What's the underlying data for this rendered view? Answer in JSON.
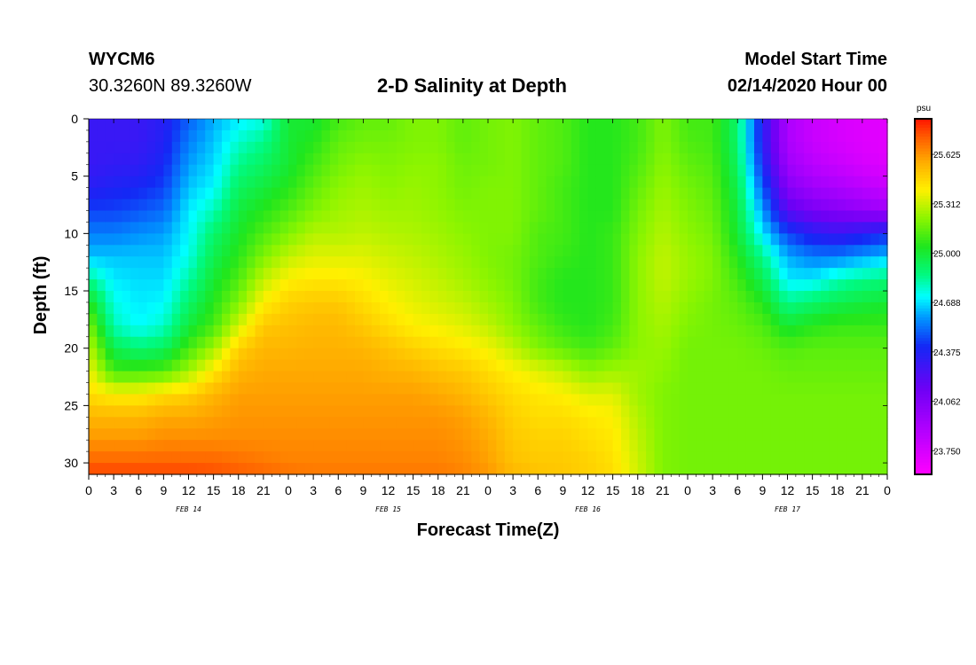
{
  "header": {
    "station": "WYCM6",
    "coords": "30.3260N 89.3260W",
    "title": "2-D Salinity at Depth",
    "model_start_label": "Model Start Time",
    "model_start_value": "02/14/2020 Hour 00"
  },
  "chart_data": {
    "type": "heatmap",
    "title": "2-D Salinity at Depth",
    "xlabel": "Forecast Time(Z)",
    "ylabel": "Depth (ft)",
    "x_range_hours": [
      0,
      96
    ],
    "y_range_ft": [
      0,
      31
    ],
    "y_inverted": true,
    "x_tick_labels": [
      "0",
      "3",
      "6",
      "9",
      "12",
      "15",
      "18",
      "21",
      "0",
      "3",
      "6",
      "9",
      "12",
      "15",
      "18",
      "21",
      "0",
      "3",
      "6",
      "9",
      "12",
      "15",
      "18",
      "21",
      "0",
      "3",
      "6",
      "9",
      "12",
      "15",
      "18",
      "21",
      "0"
    ],
    "x_date_labels": [
      {
        "label": "FEB 14",
        "hour": 12
      },
      {
        "label": "FEB 15",
        "hour": 36
      },
      {
        "label": "FEB 16",
        "hour": 60
      },
      {
        "label": "FEB 17",
        "hour": 84
      }
    ],
    "y_ticks": [
      0,
      5,
      10,
      15,
      20,
      25,
      30
    ],
    "colorbar": {
      "unit": "psu",
      "min": 23.6,
      "max": 25.85,
      "tick_values": [
        25.625,
        25.312,
        25.0,
        24.688,
        24.375,
        24.062,
        23.75
      ],
      "tick_labels": [
        "25.625",
        "25.312",
        "25.000",
        "24.688",
        "24.375",
        "24.062",
        "23.750"
      ]
    },
    "salinity_profiles_psu": {
      "hours": [
        0,
        3,
        6,
        9,
        12,
        15,
        18,
        21,
        24,
        27,
        30,
        33,
        36,
        39,
        42,
        45,
        48,
        51,
        54,
        57,
        60,
        63,
        66,
        69,
        72,
        75,
        78,
        81,
        84,
        87,
        90,
        93,
        96
      ],
      "depths_ft": [
        0,
        2,
        4,
        6,
        8,
        10,
        12,
        14,
        16,
        18,
        20,
        22,
        24,
        26,
        28,
        30,
        31
      ],
      "values": [
        [
          24.3,
          24.3,
          24.3,
          24.35,
          24.45,
          24.55,
          24.65,
          24.85,
          25.05,
          25.2,
          25.3,
          25.38,
          25.45,
          25.55,
          25.62,
          25.72,
          25.78
        ],
        [
          24.3,
          24.3,
          24.32,
          24.38,
          24.45,
          24.55,
          24.65,
          24.7,
          24.75,
          24.8,
          24.95,
          25.1,
          25.4,
          25.55,
          25.62,
          25.72,
          25.78
        ],
        [
          24.3,
          24.3,
          24.33,
          24.4,
          24.48,
          24.58,
          24.65,
          24.68,
          24.7,
          24.72,
          24.88,
          25.1,
          25.4,
          25.55,
          25.62,
          25.72,
          25.78
        ],
        [
          24.35,
          24.37,
          24.4,
          24.45,
          24.52,
          24.6,
          24.65,
          24.68,
          24.72,
          24.78,
          24.92,
          25.12,
          25.45,
          25.58,
          25.64,
          25.72,
          25.78
        ],
        [
          24.5,
          24.55,
          24.6,
          24.65,
          24.7,
          24.72,
          24.75,
          24.82,
          24.9,
          24.98,
          25.1,
          25.25,
          25.48,
          25.58,
          25.64,
          25.72,
          25.78
        ],
        [
          24.62,
          24.65,
          24.68,
          24.72,
          24.8,
          24.9,
          24.95,
          25.0,
          25.05,
          25.1,
          25.25,
          25.42,
          25.55,
          25.6,
          25.64,
          25.72,
          25.76
        ],
        [
          24.7,
          24.78,
          24.85,
          24.92,
          24.98,
          25.02,
          25.06,
          25.12,
          25.2,
          25.32,
          25.48,
          25.55,
          25.6,
          25.62,
          25.64,
          25.7,
          25.74
        ],
        [
          24.75,
          24.85,
          24.92,
          24.98,
          25.05,
          25.12,
          25.2,
          25.3,
          25.4,
          25.5,
          25.55,
          25.58,
          25.6,
          25.62,
          25.64,
          25.68,
          25.72
        ],
        [
          25.0,
          25.0,
          25.0,
          25.05,
          25.12,
          25.2,
          25.3,
          25.4,
          25.48,
          25.52,
          25.55,
          25.58,
          25.6,
          25.62,
          25.64,
          25.66,
          25.7
        ],
        [
          25.0,
          25.05,
          25.1,
          25.15,
          25.2,
          25.28,
          25.35,
          25.42,
          25.5,
          25.54,
          25.56,
          25.58,
          25.6,
          25.62,
          25.64,
          25.66,
          25.68
        ],
        [
          25.1,
          25.15,
          25.18,
          25.22,
          25.25,
          25.28,
          25.35,
          25.42,
          25.5,
          25.54,
          25.56,
          25.58,
          25.6,
          25.62,
          25.64,
          25.66,
          25.68
        ],
        [
          25.15,
          25.18,
          25.22,
          25.25,
          25.27,
          25.3,
          25.35,
          25.4,
          25.45,
          25.5,
          25.55,
          25.58,
          25.6,
          25.62,
          25.64,
          25.66,
          25.68
        ],
        [
          25.15,
          25.18,
          25.2,
          25.22,
          25.25,
          25.28,
          25.32,
          25.36,
          25.4,
          25.45,
          25.52,
          25.56,
          25.6,
          25.62,
          25.64,
          25.66,
          25.68
        ],
        [
          25.2,
          25.2,
          25.22,
          25.24,
          25.25,
          25.27,
          25.3,
          25.33,
          25.36,
          25.4,
          25.48,
          25.55,
          25.6,
          25.62,
          25.64,
          25.66,
          25.68
        ],
        [
          25.2,
          25.2,
          25.22,
          25.22,
          25.23,
          25.25,
          25.27,
          25.3,
          25.33,
          25.38,
          25.45,
          25.52,
          25.58,
          25.62,
          25.64,
          25.66,
          25.68
        ],
        [
          25.15,
          25.15,
          25.17,
          25.18,
          25.2,
          25.22,
          25.24,
          25.26,
          25.3,
          25.35,
          25.42,
          25.5,
          25.55,
          25.6,
          25.62,
          25.64,
          25.66
        ],
        [
          25.18,
          25.18,
          25.18,
          25.2,
          25.2,
          25.2,
          25.2,
          25.22,
          25.25,
          25.3,
          25.38,
          25.45,
          25.5,
          25.55,
          25.58,
          25.6,
          25.62
        ],
        [
          25.2,
          25.2,
          25.2,
          25.2,
          25.2,
          25.2,
          25.18,
          25.18,
          25.2,
          25.22,
          25.3,
          25.4,
          25.45,
          25.48,
          25.5,
          25.52,
          25.55
        ],
        [
          25.15,
          25.15,
          25.15,
          25.15,
          25.15,
          25.12,
          25.12,
          25.1,
          25.1,
          25.15,
          25.2,
          25.35,
          25.42,
          25.45,
          25.48,
          25.5,
          25.52
        ],
        [
          25.12,
          25.12,
          25.12,
          25.1,
          25.1,
          25.1,
          25.08,
          25.05,
          25.05,
          25.08,
          25.15,
          25.3,
          25.4,
          25.45,
          25.48,
          25.5,
          25.5
        ],
        [
          25.05,
          25.05,
          25.05,
          25.05,
          25.05,
          25.05,
          25.05,
          25.05,
          25.05,
          25.05,
          25.1,
          25.22,
          25.35,
          25.42,
          25.45,
          25.48,
          25.48
        ],
        [
          25.05,
          25.05,
          25.05,
          25.05,
          25.05,
          25.08,
          25.08,
          25.08,
          25.08,
          25.1,
          25.15,
          25.25,
          25.35,
          25.4,
          25.42,
          25.44,
          25.45
        ],
        [
          25.1,
          25.1,
          25.12,
          25.15,
          25.18,
          25.2,
          25.22,
          25.22,
          25.22,
          25.22,
          25.22,
          25.25,
          25.25,
          25.28,
          25.3,
          25.32,
          25.32
        ],
        [
          25.2,
          25.2,
          25.22,
          25.24,
          25.26,
          25.28,
          25.3,
          25.3,
          25.28,
          25.26,
          25.24,
          25.22,
          25.2,
          25.2,
          25.2,
          25.2,
          25.2
        ],
        [
          25.1,
          25.12,
          25.15,
          25.18,
          25.2,
          25.22,
          25.24,
          25.24,
          25.22,
          25.2,
          25.18,
          25.18,
          25.18,
          25.18,
          25.18,
          25.18,
          25.18
        ],
        [
          25.1,
          25.1,
          25.12,
          25.14,
          25.16,
          25.18,
          25.2,
          25.2,
          25.18,
          25.18,
          25.18,
          25.18,
          25.18,
          25.18,
          25.18,
          25.18,
          25.18
        ],
        [
          24.9,
          24.9,
          24.92,
          24.95,
          24.98,
          25.0,
          25.05,
          25.1,
          25.14,
          25.16,
          25.18,
          25.18,
          25.18,
          25.18,
          25.18,
          25.18,
          25.18
        ],
        [
          24.35,
          24.35,
          24.4,
          24.5,
          24.6,
          24.7,
          24.85,
          24.95,
          25.05,
          25.12,
          25.16,
          25.18,
          25.18,
          25.18,
          25.18,
          25.18,
          25.18
        ],
        [
          23.9,
          23.9,
          23.95,
          24.05,
          24.2,
          24.45,
          24.62,
          24.7,
          24.85,
          25.0,
          25.12,
          25.16,
          25.18,
          25.18,
          25.18,
          25.18,
          25.18
        ],
        [
          23.8,
          23.8,
          23.85,
          23.95,
          24.1,
          24.35,
          24.55,
          24.7,
          24.9,
          25.05,
          25.14,
          25.16,
          25.18,
          25.18,
          25.18,
          25.18,
          25.18
        ],
        [
          23.75,
          23.75,
          23.8,
          23.9,
          24.05,
          24.3,
          24.55,
          24.8,
          24.95,
          25.08,
          25.14,
          25.16,
          25.18,
          25.18,
          25.18,
          25.18,
          25.18
        ],
        [
          23.72,
          23.72,
          23.75,
          23.85,
          24.0,
          24.35,
          24.6,
          24.85,
          24.98,
          25.08,
          25.14,
          25.16,
          25.18,
          25.18,
          25.18,
          25.18,
          25.18
        ],
        [
          23.7,
          23.7,
          23.72,
          23.8,
          23.95,
          24.4,
          24.65,
          24.88,
          25.0,
          25.08,
          25.14,
          25.16,
          25.18,
          25.18,
          25.18,
          25.18,
          25.18
        ]
      ]
    }
  }
}
